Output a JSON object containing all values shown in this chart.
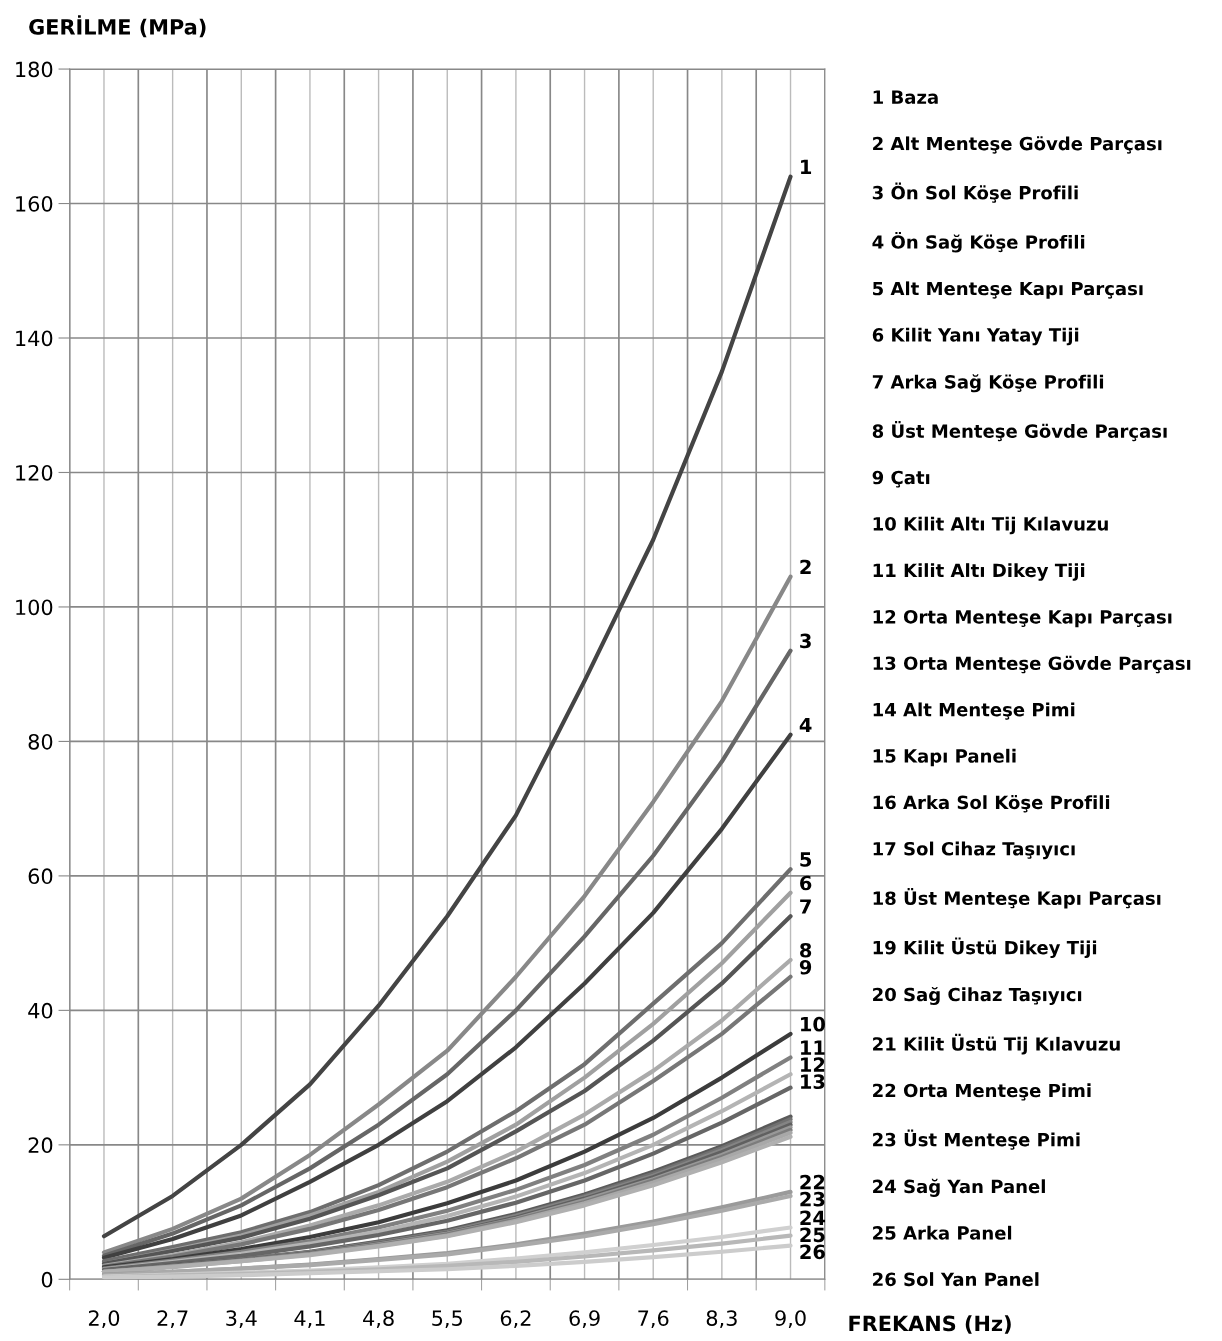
{
  "chart_data": {
    "type": "line",
    "ylabel": "GERİLME (MPa)",
    "xlabel": "FREKANS (Hz)",
    "categories": [
      "2,0",
      "2,7",
      "3,4",
      "4,1",
      "4,8",
      "5,5",
      "6,2",
      "6,9",
      "7,6",
      "8,3",
      "9,0"
    ],
    "ylim": [
      0,
      180
    ],
    "yticks": [
      0,
      20,
      40,
      60,
      80,
      100,
      120,
      140,
      160,
      180
    ],
    "grid": true,
    "legend": "right",
    "marker": "none",
    "line_style": "solid",
    "series": [
      {
        "name": "1 Baza",
        "color": "#444444",
        "values": [
          6.4,
          12.4,
          20,
          29,
          40.7,
          54,
          69,
          89,
          110,
          135,
          164
        ]
      },
      {
        "name": "2 Alt Menteşe Gövde Parçası",
        "color": "#888888",
        "values": [
          4,
          7.5,
          12,
          18.5,
          26,
          34,
          45,
          57,
          71,
          86,
          104.5
        ]
      },
      {
        "name": "3 Ön Sol Köşe Profili",
        "color": "#666666",
        "values": [
          3.5,
          6.8,
          11,
          16.5,
          23,
          30.5,
          40,
          51,
          63,
          77,
          93.5
        ]
      },
      {
        "name": "4 Ön Sağ Köşe Profili",
        "color": "#404040",
        "values": [
          3.2,
          6,
          9.5,
          14.5,
          20,
          26.5,
          34.5,
          44,
          54.5,
          67,
          81
        ]
      },
      {
        "name": "5 Alt Menteşe Kapı Parçası",
        "color": "#6e6e6e",
        "values": [
          2.7,
          4.8,
          7,
          10,
          14,
          19,
          25,
          32,
          41,
          50,
          61
        ]
      },
      {
        "name": "6 Kilit Yanı Yatay Tiji",
        "color": "#a0a0a0",
        "values": [
          2.3,
          4.3,
          6.5,
          9.5,
          13,
          17.5,
          23,
          30,
          38,
          47,
          57.5
        ]
      },
      {
        "name": "7 Arka Sağ Köşe Profili",
        "color": "#555555",
        "values": [
          2.3,
          4.2,
          6.2,
          9,
          12.5,
          16.5,
          22,
          28,
          35.5,
          44,
          54
        ]
      },
      {
        "name": "8 Üst Menteşe Gövde Parçası",
        "color": "#aaaaaa",
        "values": [
          2,
          3.6,
          5.5,
          8,
          11,
          14.5,
          19,
          24.5,
          31,
          38.5,
          47.5
        ]
      },
      {
        "name": "9 Çatı",
        "color": "#777777",
        "values": [
          1.9,
          3.4,
          5.2,
          7.5,
          10.3,
          13.7,
          18,
          23,
          29.5,
          36.5,
          45
        ]
      },
      {
        "name": "10 Kilit Altı Tij Kılavuzu",
        "color": "#3c3c3c",
        "values": [
          1.8,
          3,
          4.5,
          6.3,
          8.5,
          11.3,
          14.7,
          19,
          24,
          30,
          36.5
        ]
      },
      {
        "name": "11 Kilit Altı Dikey Tiji",
        "color": "#808080",
        "values": [
          1.6,
          2.8,
          4.1,
          5.7,
          7.7,
          10.2,
          13.3,
          17,
          21.5,
          27,
          33
        ]
      },
      {
        "name": "12 Orta Menteşe Kapı Parçası",
        "color": "#b4b4b4",
        "values": [
          1.5,
          2.6,
          3.8,
          5.3,
          7.1,
          9.4,
          12.3,
          15.8,
          20,
          25,
          30.5
        ]
      },
      {
        "name": "13 Orta Menteşe Gövde Parçası",
        "color": "#666666",
        "values": [
          1.4,
          2.4,
          3.5,
          4.9,
          6.6,
          8.7,
          11.4,
          14.7,
          18.7,
          23.3,
          28.5
        ]
      },
      {
        "name": "14 Alt Menteşe Pimi",
        "color": "#5a5a5a",
        "values": [
          1.2,
          2.1,
          3.0,
          4.1,
          5.6,
          7.3,
          9.7,
          12.6,
          16.0,
          19.8,
          24.2
        ]
      },
      {
        "name": "15 Kapı Paneli",
        "color": "#707070",
        "values": [
          1.2,
          2.0,
          3.0,
          4.0,
          5.5,
          7.1,
          9.5,
          12.4,
          15.7,
          19.5,
          23.8
        ]
      },
      {
        "name": "16 Arka Sol Köşe Profili",
        "color": "#848484",
        "values": [
          1.2,
          2.0,
          2.9,
          4.0,
          5.4,
          7.0,
          9.4,
          12.2,
          15.4,
          19.2,
          23.4
        ]
      },
      {
        "name": "17 Sol Cihaz Taşıyıcı",
        "color": "#606060",
        "values": [
          1.2,
          2.0,
          2.9,
          3.9,
          5.3,
          6.9,
          9.2,
          12.0,
          15.2,
          18.9,
          23.0
        ]
      },
      {
        "name": "18 Üst Menteşe Kapı Parçası",
        "color": "#989898",
        "values": [
          1.1,
          1.9,
          2.8,
          3.8,
          5.2,
          6.8,
          9.0,
          11.8,
          14.9,
          18.5,
          22.6
        ]
      },
      {
        "name": "19 Kilit Üstü Dikey Tiji",
        "color": "#7c7c7c",
        "values": [
          1.1,
          1.9,
          2.8,
          3.8,
          5.1,
          6.7,
          8.9,
          11.5,
          14.7,
          18.2,
          22.2
        ]
      },
      {
        "name": "20 Sağ Cihaz Taşıyıcı",
        "color": "#a8a8a8",
        "values": [
          1.1,
          1.9,
          2.7,
          3.7,
          5.0,
          6.5,
          8.7,
          11.3,
          14.4,
          17.9,
          21.8
        ]
      },
      {
        "name": "21 Kilit Üstü Tij Kılavuzu",
        "color": "#b0b0b0",
        "values": [
          1.1,
          1.8,
          2.7,
          3.6,
          4.9,
          6.4,
          8.5,
          11.0,
          14.0,
          17.4,
          21.2
        ]
      },
      {
        "name": "22 Orta Menteşe Pimi",
        "color": "#9a9a9a",
        "values": [
          0.7,
          1.1,
          1.6,
          2.2,
          3,
          3.9,
          5.2,
          6.8,
          8.6,
          10.7,
          13
        ]
      },
      {
        "name": "23 Üst Menteşe Pimi",
        "color": "#aaaaaa",
        "values": [
          0.6,
          1.1,
          1.6,
          2.1,
          2.9,
          3.7,
          5.0,
          6.4,
          8.2,
          10.2,
          12.4
        ]
      },
      {
        "name": "24 Sağ Yan Panel",
        "color": "#d0d0d0",
        "values": [
          0.4,
          0.7,
          1.0,
          1.3,
          1.8,
          2.3,
          3.1,
          4.0,
          5.1,
          6.3,
          7.7
        ]
      },
      {
        "name": "25 Arka Panel",
        "color": "#b8b8b8",
        "values": [
          0.3,
          0.6,
          0.8,
          1.1,
          1.5,
          2.0,
          2.6,
          3.4,
          4.3,
          5.3,
          6.5
        ]
      },
      {
        "name": "26 Sol Yan Panel",
        "color": "#cccccc",
        "values": [
          0.3,
          0.4,
          0.6,
          0.9,
          1.2,
          1.5,
          2.0,
          2.6,
          3.3,
          4.1,
          5.0
        ]
      }
    ],
    "annotations": [
      {
        "text": "1",
        "x": "9,0",
        "y": 164
      },
      {
        "text": "2",
        "x": "9,0",
        "y": 104.5
      },
      {
        "text": "3",
        "x": "9,0",
        "y": 93.5
      },
      {
        "text": "4",
        "x": "9,0",
        "y": 81
      },
      {
        "text": "5",
        "x": "9,0",
        "y": 61
      },
      {
        "text": "6",
        "x": "9,0",
        "y": 57.5
      },
      {
        "text": "7",
        "x": "9,0",
        "y": 54
      },
      {
        "text": "8",
        "x": "9,0",
        "y": 47.5
      },
      {
        "text": "9",
        "x": "9,0",
        "y": 45
      },
      {
        "text": "10",
        "x": "9,0",
        "y": 36.5
      },
      {
        "text": "11",
        "x": "9,0",
        "y": 33
      },
      {
        "text": "12",
        "x": "9,0",
        "y": 30.5
      },
      {
        "text": "13",
        "x": "9,0",
        "y": 28.5
      },
      {
        "text": "22",
        "x": "9,0",
        "y": 13
      },
      {
        "text": "23",
        "x": "9,0",
        "y": 12.4
      },
      {
        "text": "24",
        "x": "9,0",
        "y": 7.7
      },
      {
        "text": "25",
        "x": "9,0",
        "y": 6.5
      },
      {
        "text": "26",
        "x": "9,0",
        "y": 5.0
      }
    ]
  }
}
